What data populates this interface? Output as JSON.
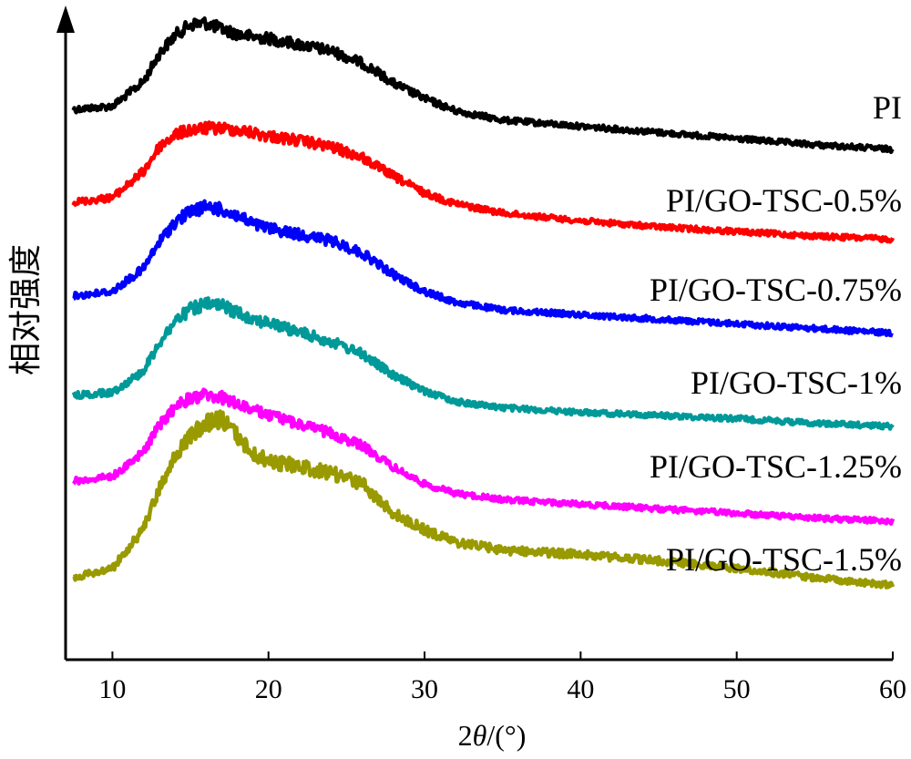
{
  "chart_data": {
    "type": "line",
    "xlabel": "2θ/(°)",
    "ylabel": "相对强度",
    "xlim": [
      7,
      60
    ],
    "xticks": [
      10,
      20,
      30,
      40,
      50,
      60
    ],
    "grid": false,
    "legend": "inline-right",
    "y_units": "relative intensity (stacked, offset)",
    "series": [
      {
        "name": "PI",
        "color": "#000000",
        "x": [
          7.5,
          10,
          12,
          13,
          14,
          15,
          16,
          17,
          18,
          19,
          20,
          22,
          24,
          26,
          27,
          28,
          30,
          32,
          35,
          40,
          45,
          50,
          55,
          60
        ],
        "y": [
          5.0,
          5.2,
          6.8,
          8.6,
          9.8,
          10.5,
          10.6,
          10.2,
          9.9,
          9.7,
          9.6,
          9.2,
          8.8,
          8.0,
          7.4,
          6.7,
          5.7,
          4.9,
          4.3,
          3.9,
          3.5,
          3.1,
          2.7,
          2.4
        ]
      },
      {
        "name": "PI/GO-TSC-0.5%",
        "color": "#ff0000",
        "x": [
          7.5,
          10,
          12,
          13,
          14,
          15,
          16,
          17,
          18,
          19,
          20,
          22,
          24,
          26,
          27,
          28,
          30,
          32,
          35,
          40,
          45,
          50,
          55,
          60
        ],
        "y": [
          5.0,
          5.3,
          7.0,
          8.6,
          9.4,
          9.7,
          9.8,
          9.8,
          9.7,
          9.5,
          9.3,
          9.0,
          8.6,
          7.9,
          7.3,
          6.7,
          5.6,
          4.9,
          4.3,
          3.8,
          3.4,
          3.1,
          2.8,
          2.6
        ]
      },
      {
        "name": "PI/GO-TSC-0.75%",
        "color": "#0000ff",
        "x": [
          7.5,
          10,
          12,
          13,
          14,
          15,
          16,
          17,
          18,
          19,
          20,
          22,
          24,
          26,
          27,
          28,
          30,
          32,
          35,
          40,
          45,
          50,
          55,
          60
        ],
        "y": [
          5.0,
          5.3,
          6.8,
          8.5,
          9.8,
          10.5,
          10.8,
          10.6,
          10.2,
          9.7,
          9.4,
          9.0,
          8.6,
          7.8,
          7.1,
          6.4,
          5.3,
          4.6,
          4.1,
          3.8,
          3.5,
          3.2,
          2.9,
          2.6
        ]
      },
      {
        "name": "PI/GO-TSC-1%",
        "color": "#009999",
        "x": [
          7.5,
          10,
          12,
          13,
          14,
          15,
          16,
          17,
          18,
          19,
          20,
          22,
          24,
          26,
          27,
          28,
          30,
          32,
          35,
          40,
          45,
          50,
          55,
          60
        ],
        "y": [
          5.0,
          5.2,
          6.6,
          8.4,
          9.8,
          10.6,
          10.9,
          10.8,
          10.4,
          10.0,
          9.7,
          9.1,
          8.5,
          7.7,
          7.0,
          6.3,
          5.3,
          4.6,
          4.2,
          3.9,
          3.7,
          3.5,
          3.2,
          3.0
        ]
      },
      {
        "name": "PI/GO-TSC-1.25%",
        "color": "#ff00ff",
        "x": [
          7.5,
          10,
          12,
          13,
          14,
          15,
          16,
          17,
          18,
          19,
          20,
          22,
          24,
          26,
          27,
          28,
          30,
          32,
          35,
          40,
          45,
          50,
          55,
          60
        ],
        "y": [
          5.0,
          5.3,
          6.9,
          8.6,
          9.8,
          10.4,
          10.6,
          10.4,
          10.0,
          9.6,
          9.3,
          8.7,
          8.1,
          7.3,
          6.6,
          5.9,
          4.8,
          4.2,
          3.8,
          3.5,
          3.2,
          2.9,
          2.6,
          2.4
        ]
      },
      {
        "name": "PI/GO-TSC-1.5%",
        "color": "#999900",
        "x": [
          7.5,
          10,
          12,
          13,
          14,
          15,
          16,
          17,
          18,
          19,
          20,
          22,
          24,
          26,
          27,
          28,
          30,
          32,
          35,
          40,
          45,
          50,
          55,
          60
        ],
        "y": [
          5.0,
          5.6,
          8.2,
          10.8,
          12.8,
          14.2,
          15.0,
          15.3,
          14.2,
          13.0,
          12.6,
          12.2,
          11.8,
          11.1,
          10.1,
          9.2,
          8.1,
          7.3,
          6.8,
          6.5,
          6.1,
          5.6,
          5.0,
          4.5
        ]
      }
    ]
  },
  "labels": {
    "series": [
      "PI",
      "PI/GO-TSC-0.5%",
      "PI/GO-TSC-0.75%",
      "PI/GO-TSC-1%",
      "PI/GO-TSC-1.25%",
      "PI/GO-TSC-1.5%"
    ],
    "xticks": [
      "10",
      "20",
      "30",
      "40",
      "50",
      "60"
    ],
    "xlabel_prefix": "2",
    "xlabel_theta": "θ",
    "xlabel_suffix": "/(°)",
    "ylabel": "相对强度"
  }
}
